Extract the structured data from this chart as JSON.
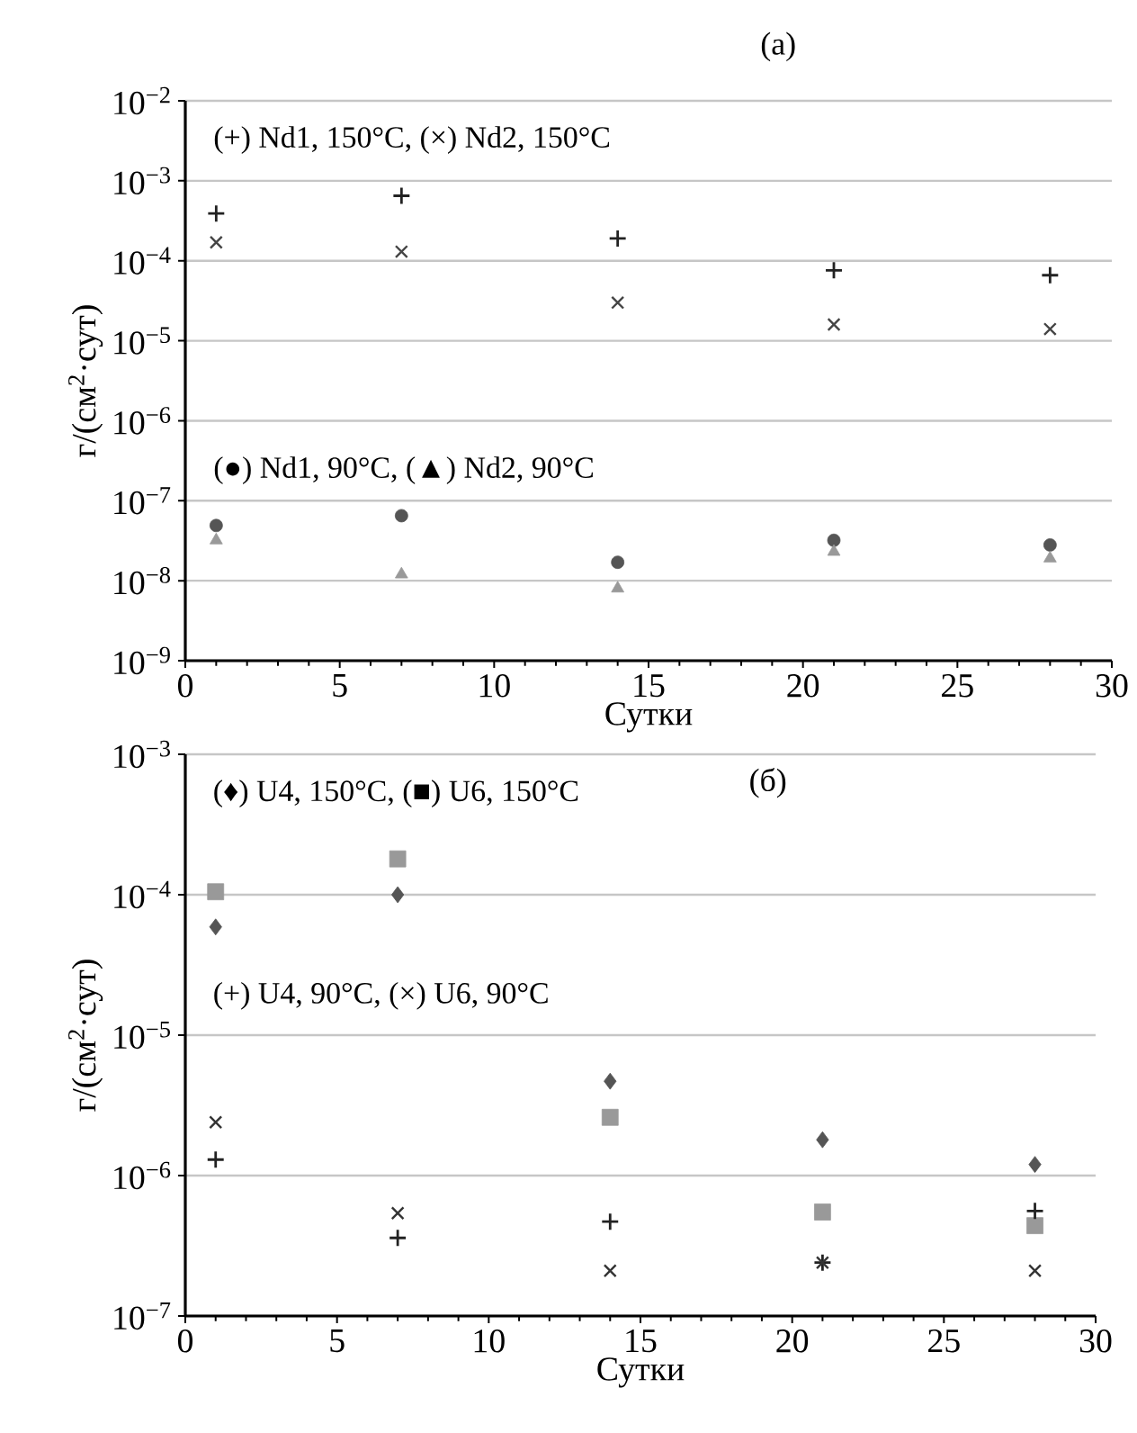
{
  "chart_data": [
    {
      "type": "scatter",
      "title": "(a)",
      "xlabel": "Сутки",
      "ylabel": "г/(см$^{2}$·сут)",
      "log": "y",
      "grid": "y",
      "annotations": [
        "(+) Nd1, 150°C, (×) Nd2, 150°C",
        "(●) Nd1, 90°C, (▲) Nd2, 90°C"
      ],
      "x": [
        1,
        7,
        14,
        21,
        28
      ],
      "xlim": [
        0,
        30
      ],
      "xticks": [
        0,
        5,
        10,
        15,
        20,
        25,
        30
      ],
      "ylim": [
        1e-09,
        0.01
      ],
      "yticks": [
        {
          "value": 1e-09,
          "label": "10$^{−9}$"
        },
        {
          "value": 1e-08,
          "label": "10$^{−8}$"
        },
        {
          "value": 1e-07,
          "label": "10$^{−7}$"
        },
        {
          "value": 1e-06,
          "label": "10$^{−6}$"
        },
        {
          "value": 1e-05,
          "label": "10$^{−5}$"
        },
        {
          "value": 0.0001,
          "label": "10$^{−4}$"
        },
        {
          "value": 0.001,
          "label": "10$^{−3}$"
        },
        {
          "value": 0.01,
          "label": "10$^{−2}$"
        }
      ],
      "series": [
        {
          "color": "#222222",
          "marker": "plus",
          "values": [
            0.00039,
            0.00065,
            0.00019,
            7.6e-05,
            6.6e-05
          ]
        },
        {
          "color": "#444444",
          "marker": "cross",
          "values": [
            0.00017,
            0.00013,
            3e-05,
            1.6e-05,
            1.4e-05
          ]
        },
        {
          "color": "#555555",
          "marker": "circle",
          "values": [
            4.9e-08,
            6.5e-08,
            1.7e-08,
            3.2e-08,
            2.8e-08
          ]
        },
        {
          "color": "#999999",
          "marker": "triangle",
          "values": [
            3.2e-08,
            1.2e-08,
            8e-09,
            2.3e-08,
            1.9e-08
          ]
        }
      ]
    },
    {
      "type": "scatter",
      "title": "(б)",
      "xlabel": "Сутки",
      "ylabel": "г/(см$^{2}$·сут)",
      "log": "y",
      "grid": "y",
      "annotations": [
        "(♦) U4, 150°C, (■) U6, 150°C",
        "(+) U4, 90°C, (×) U6, 90°C"
      ],
      "x": [
        1,
        7,
        14,
        21,
        28
      ],
      "xlim": [
        0,
        30
      ],
      "xticks": [
        0,
        5,
        10,
        15,
        20,
        25,
        30
      ],
      "ylim": [
        1e-07,
        0.001
      ],
      "yticks": [
        {
          "value": 1e-07,
          "label": "10$^{−7}$"
        },
        {
          "value": 1e-06,
          "label": "10$^{−6}$"
        },
        {
          "value": 1e-05,
          "label": "10$^{−5}$"
        },
        {
          "value": 0.0001,
          "label": "10$^{−4}$"
        },
        {
          "value": 0.001,
          "label": "10$^{−3}$"
        }
      ],
      "series": [
        {
          "color": "#555555",
          "marker": "diamond",
          "values": [
            5.9e-05,
            0.0001,
            4.7e-06,
            1.8e-06,
            1.2e-06
          ]
        },
        {
          "color": "#999999",
          "marker": "square",
          "values": [
            0.000105,
            0.00018,
            2.6e-06,
            5.5e-07,
            4.4e-07
          ]
        },
        {
          "color": "#222222",
          "marker": "plus",
          "values": [
            1.3e-06,
            3.6e-07,
            4.7e-07,
            2.4e-07,
            5.6e-07
          ]
        },
        {
          "color": "#333333",
          "marker": "cross",
          "values": [
            2.4e-06,
            5.4e-07,
            2.1e-07,
            2.4e-07,
            2.1e-07
          ]
        }
      ]
    }
  ]
}
